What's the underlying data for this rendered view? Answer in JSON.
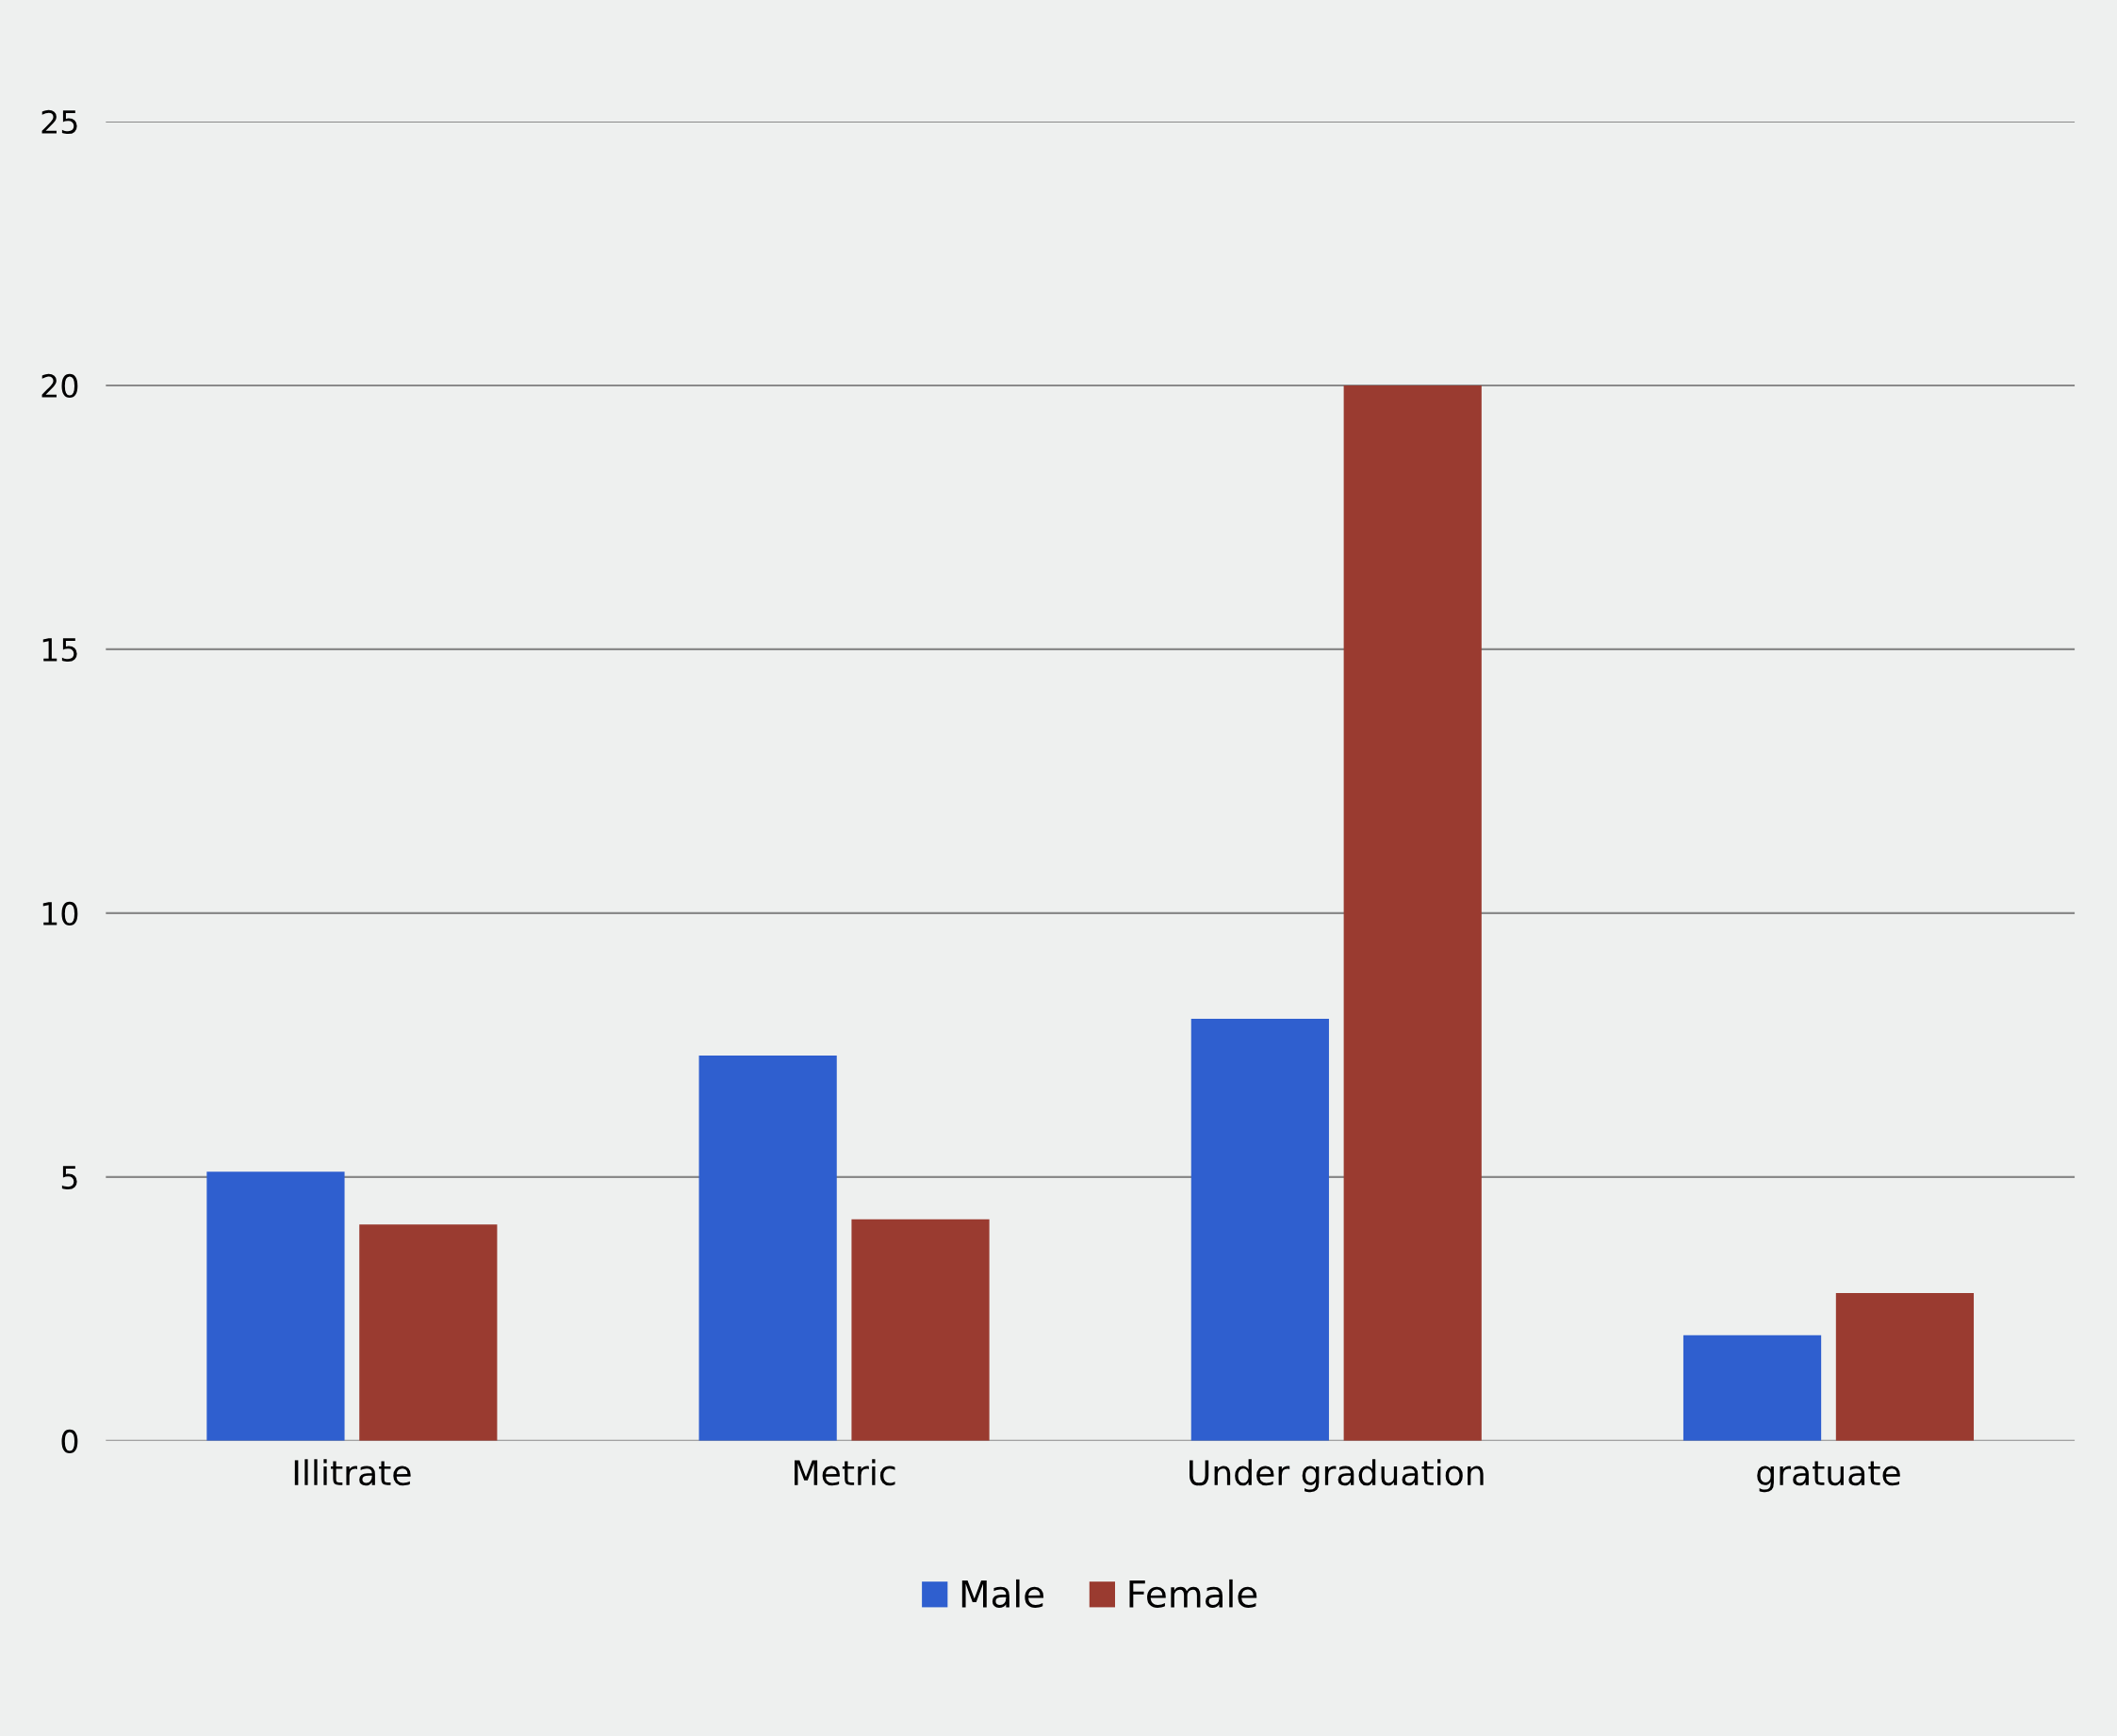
{
  "chart_data": {
    "type": "bar",
    "categories": [
      "Illitrate",
      "Metric",
      "Under graduation",
      "gratuate"
    ],
    "series": [
      {
        "name": "Male",
        "color": "#2f5fcf",
        "values": [
          5.1,
          7.3,
          8.0,
          2.0
        ]
      },
      {
        "name": "Female",
        "color": "#9a3b30",
        "values": [
          4.1,
          4.2,
          20.0,
          2.8
        ]
      }
    ],
    "ylim": [
      0,
      25
    ],
    "yticks": [
      0,
      5,
      10,
      15,
      20,
      25
    ],
    "grid": "y",
    "legend": "bottom"
  }
}
